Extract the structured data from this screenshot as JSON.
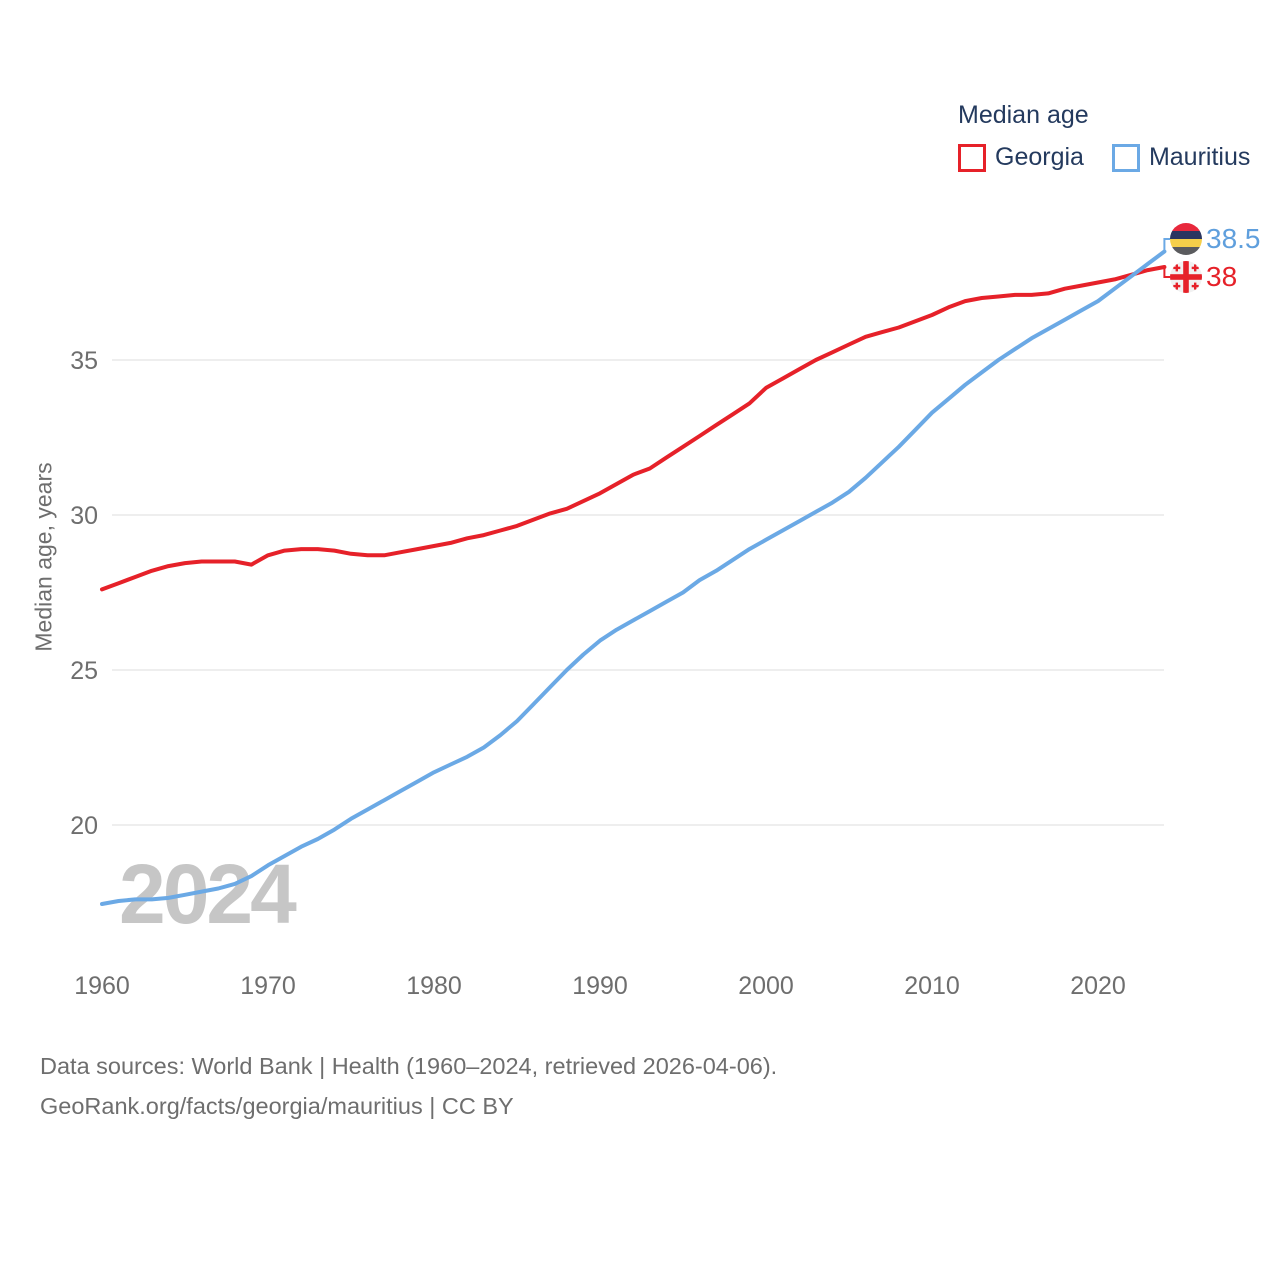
{
  "legend": {
    "title": "Median age",
    "items": [
      {
        "label": "Georgia",
        "color": "#e62129"
      },
      {
        "label": "Mauritius",
        "color": "#6ba9e5"
      }
    ]
  },
  "end_labels": {
    "mauritius": "38.5",
    "georgia": "38"
  },
  "watermark": "2024",
  "footer": {
    "line1": "Data sources: World Bank | Health (1960–2024, retrieved 2026-04-06).",
    "line2": "GeoRank.org/facts/georgia/mauritius | CC BY"
  },
  "colors": {
    "georgia_red": "#e62129",
    "mauritius_blue": "#6ba9e5",
    "blue_label": "#5f9fdd",
    "grid": "#e9e9e9",
    "tick_text": "#6e6e6e",
    "legend_text": "#243a5e",
    "watermark_gray": "#c6c6c6"
  },
  "chart_data": {
    "type": "line",
    "title": "Median age",
    "xlabel": "",
    "ylabel": "Median age, years",
    "x_ticks": [
      1960,
      1970,
      1980,
      1990,
      2000,
      2010,
      2020
    ],
    "y_ticks": [
      35,
      30,
      25,
      20
    ],
    "xlim": [
      1960,
      2024
    ],
    "ylim": [
      16.5,
      39.5
    ],
    "grid": "horizontal-only",
    "legend_position": "top-right",
    "x_start": 1960,
    "x_step": 1,
    "series": [
      {
        "name": "Georgia",
        "color": "#e62129",
        "end_value": 38,
        "values": [
          27.6,
          27.8,
          28.0,
          28.2,
          28.35,
          28.45,
          28.5,
          28.5,
          28.5,
          28.4,
          28.7,
          28.85,
          28.9,
          28.9,
          28.85,
          28.75,
          28.7,
          28.7,
          28.8,
          28.9,
          29.0,
          29.1,
          29.25,
          29.35,
          29.5,
          29.65,
          29.85,
          30.05,
          30.2,
          30.45,
          30.7,
          31.0,
          31.3,
          31.5,
          31.85,
          32.2,
          32.55,
          32.9,
          33.25,
          33.6,
          34.1,
          34.4,
          34.7,
          35.0,
          35.25,
          35.5,
          35.75,
          35.9,
          36.05,
          36.25,
          36.45,
          36.7,
          36.9,
          37.0,
          37.05,
          37.1,
          37.1,
          37.15,
          37.3,
          37.4,
          37.5,
          37.6,
          37.75,
          37.9,
          38.0
        ]
      },
      {
        "name": "Mauritius",
        "color": "#6ba9e5",
        "end_value": 38.5,
        "values": [
          17.45,
          17.55,
          17.6,
          17.6,
          17.65,
          17.75,
          17.85,
          17.95,
          18.1,
          18.35,
          18.7,
          19.0,
          19.3,
          19.55,
          19.85,
          20.2,
          20.5,
          20.8,
          21.1,
          21.4,
          21.7,
          21.95,
          22.2,
          22.5,
          22.9,
          23.35,
          23.9,
          24.45,
          25.0,
          25.5,
          25.95,
          26.3,
          26.6,
          26.9,
          27.2,
          27.5,
          27.9,
          28.2,
          28.55,
          28.9,
          29.2,
          29.5,
          29.8,
          30.1,
          30.4,
          30.75,
          31.2,
          31.7,
          32.2,
          32.75,
          33.3,
          33.75,
          34.2,
          34.6,
          35.0,
          35.35,
          35.7,
          36.0,
          36.3,
          36.6,
          36.9,
          37.3,
          37.7,
          38.1,
          38.5
        ]
      }
    ]
  }
}
